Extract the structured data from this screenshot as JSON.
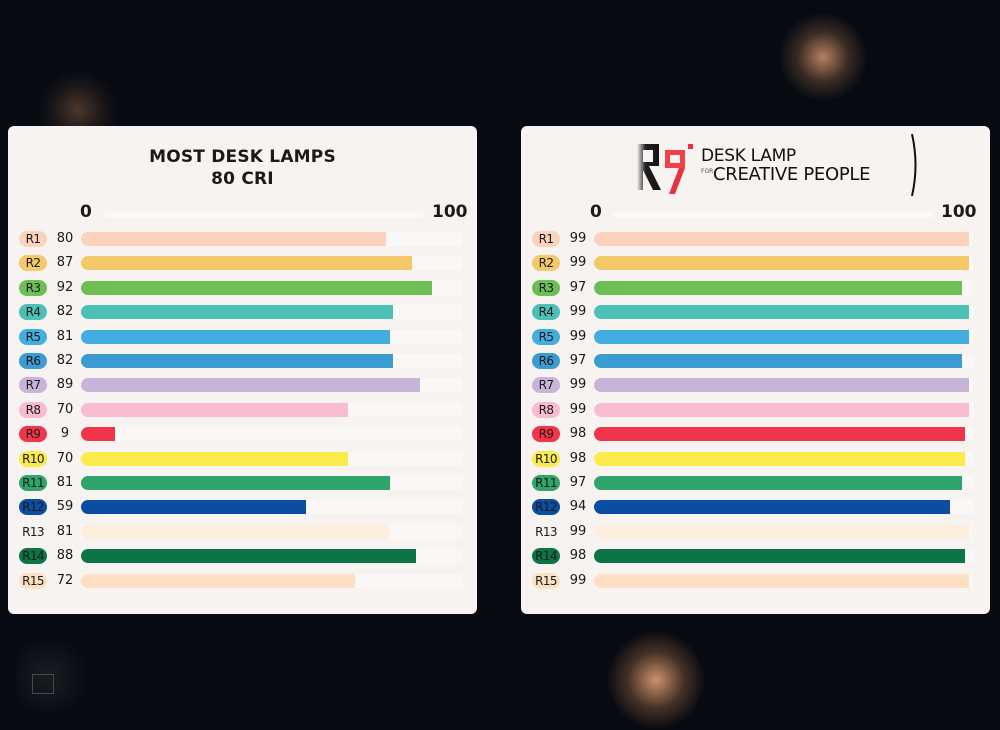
{
  "background": "#070b11",
  "left_panel": {
    "title_line1": "MOST DESK LAMPS",
    "title_line2": "80 CRI",
    "axis_min_label": "0",
    "axis_max_label": "100"
  },
  "right_panel": {
    "brand_logo": "R9",
    "brand_line1": "DESK LAMP",
    "brand_for": "FOR",
    "brand_line2": "CREATIVE PEOPLE",
    "axis_min_label": "0",
    "axis_max_label": "100"
  },
  "chart_data": [
    {
      "type": "bar",
      "orientation": "horizontal",
      "title": "MOST DESK LAMPS 80 CRI",
      "xlabel": "",
      "ylabel": "",
      "xlim": [
        0,
        100
      ],
      "ticks": [
        "0",
        "100"
      ],
      "categories": [
        "R1",
        "R2",
        "R3",
        "R4",
        "R5",
        "R6",
        "R7",
        "R8",
        "R9",
        "R10",
        "R11",
        "R12",
        "R13",
        "R14",
        "R15"
      ],
      "values": [
        80,
        87,
        92,
        82,
        81,
        82,
        89,
        70,
        9,
        70,
        81,
        59,
        81,
        88,
        72
      ],
      "colors": [
        "#fbd3bd",
        "#f3c96a",
        "#6cbe55",
        "#4cbfb7",
        "#43ade0",
        "#3c9bd1",
        "#c9b4d9",
        "#f8bcd0",
        "#f0354a",
        "#faeb4a",
        "#2fa56b",
        "#0b4da0",
        "#fdeede",
        "#0d7446",
        "#fde0c4"
      ],
      "grid": false,
      "legend": "none"
    },
    {
      "type": "bar",
      "orientation": "horizontal",
      "title": "R9 DESK LAMP FOR CREATIVE PEOPLE",
      "xlabel": "",
      "ylabel": "",
      "xlim": [
        0,
        100
      ],
      "ticks": [
        "0",
        "100"
      ],
      "categories": [
        "R1",
        "R2",
        "R3",
        "R4",
        "R5",
        "R6",
        "R7",
        "R8",
        "R9",
        "R10",
        "R11",
        "R12",
        "R13",
        "R14",
        "R15"
      ],
      "values": [
        99,
        99,
        97,
        99,
        99,
        97,
        99,
        99,
        98,
        98,
        97,
        94,
        99,
        98,
        99
      ],
      "colors": [
        "#fbd3bd",
        "#f3c96a",
        "#6cbe55",
        "#4cbfb7",
        "#43ade0",
        "#3c9bd1",
        "#c9b4d9",
        "#f8bcd0",
        "#f0354a",
        "#faeb4a",
        "#2fa56b",
        "#0b4da0",
        "#fdeede",
        "#0d7446",
        "#fde0c4"
      ],
      "grid": false,
      "legend": "none"
    }
  ]
}
